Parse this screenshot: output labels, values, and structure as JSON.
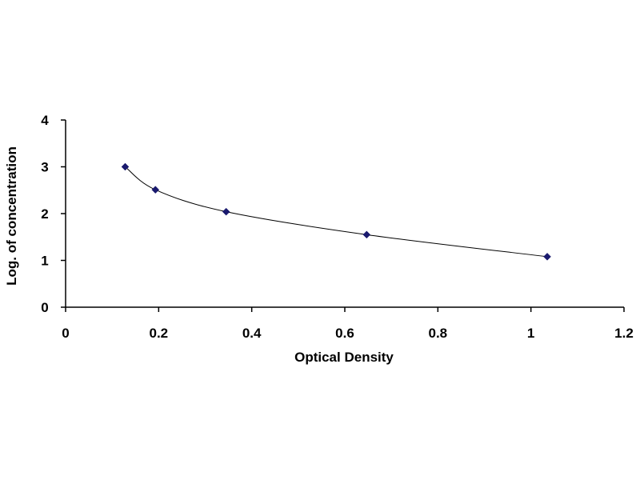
{
  "chart_data": {
    "type": "scatter",
    "title": "",
    "xlabel": "Optical Density",
    "ylabel": "Log. of concentration",
    "xlim": [
      0,
      1.2
    ],
    "ylim": [
      0,
      4
    ],
    "x_ticks": [
      "0",
      "0.2",
      "0.4",
      "0.6",
      "0.8",
      "1",
      "1.2"
    ],
    "y_ticks": [
      "0",
      "1",
      "2",
      "3",
      "4"
    ],
    "grid": false,
    "legend": "none",
    "trendline": "smooth curve through points",
    "series": [
      {
        "marker": "diamond",
        "color": "#1a1a6e",
        "x": [
          0.128,
          0.193,
          0.345,
          0.647,
          1.035
        ],
        "y": [
          3.0,
          2.51,
          2.04,
          1.55,
          1.08
        ]
      }
    ]
  }
}
